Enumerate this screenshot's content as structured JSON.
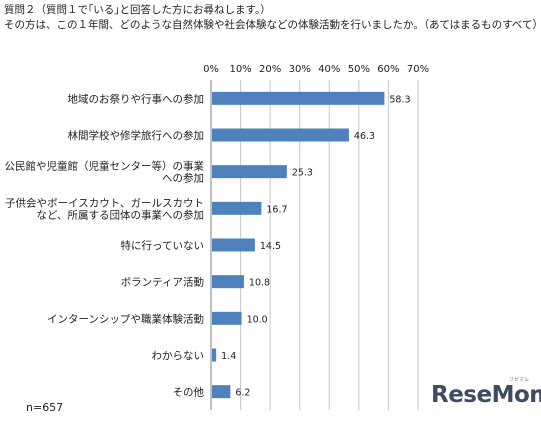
{
  "header": {
    "question_line": "質問２（質問１で｢いる｣と回答した方にお尋ねします。）",
    "subquestion_line": "その方は、この１年間、どのような自然体験や社会体験などの体験活動を行いましたか。（あてはまるものすべて）"
  },
  "sample_size": "n=657",
  "logo": {
    "text": "ReseMom",
    "subtext": "リセマム"
  },
  "colors": {
    "bar": "#4f81bd",
    "grid": "#c8c8c8",
    "axis": "#808080"
  },
  "chart_data": {
    "type": "bar",
    "orientation": "horizontal",
    "categories": [
      [
        "地域のお祭りや行事への参加"
      ],
      [
        "林間学校や修学旅行への参加"
      ],
      [
        "公民館や児童館（児童センター等）の事業",
        "への参加"
      ],
      [
        "子供会やボーイスカウト、ガールスカウト",
        "など、所属する団体の事業への参加"
      ],
      [
        "特に行っていない"
      ],
      [
        "ボランティア活動"
      ],
      [
        "インターンシップや職業体験活動"
      ],
      [
        "わからない"
      ],
      [
        "その他"
      ]
    ],
    "values": [
      58.3,
      46.3,
      25.3,
      16.7,
      14.5,
      10.8,
      10.0,
      1.4,
      6.2
    ],
    "value_labels": [
      "58.3",
      "46.3",
      "25.3",
      "16.7",
      "14.5",
      "10.8",
      "10.0",
      "1.4",
      "6.2"
    ],
    "xlim": [
      0,
      70
    ],
    "xticks": [
      "0%",
      "10%",
      "20%",
      "30%",
      "40%",
      "50%",
      "60%",
      "70%"
    ],
    "x_axis_position": "top",
    "grid": true
  }
}
